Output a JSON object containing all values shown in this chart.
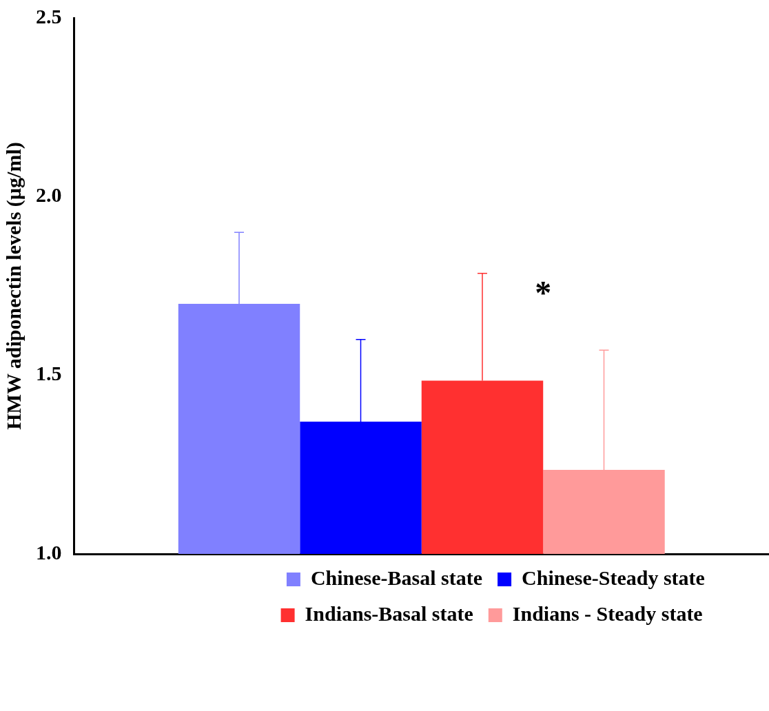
{
  "chart_data": {
    "type": "bar",
    "ylabel": "HMW adiponectin levels (µg/ml)",
    "categories": [
      null
    ],
    "series": [
      {
        "name": "Chinese-Basal state",
        "color": "#8080ff",
        "values": [
          1.7
        ],
        "errors": [
          [
            1.7,
            1.9
          ]
        ]
      },
      {
        "name": "Chinese-Steady state",
        "color": "#0000ff",
        "values": [
          1.37
        ],
        "errors": [
          [
            1.37,
            1.6
          ]
        ]
      },
      {
        "name": "Indians-Basal state",
        "color": "#ff3030",
        "values": [
          1.485
        ],
        "errors": [
          [
            1.485,
            1.785
          ]
        ]
      },
      {
        "name": "Indians - Steady state",
        "color": "#ff9a9a",
        "values": [
          1.235
        ],
        "errors": [
          [
            1.235,
            1.57
          ]
        ]
      }
    ],
    "ylim": [
      1.0,
      2.5
    ],
    "yticks": [
      {
        "value": 1.0,
        "label": "1.0"
      },
      {
        "value": 1.5,
        "label": "1.5"
      },
      {
        "value": 2.0,
        "label": "2.0"
      },
      {
        "value": 2.5,
        "label": "2.5"
      }
    ],
    "tick_labels": "y",
    "grid": false,
    "legend": "bottom",
    "annotations": [
      "*"
    ]
  }
}
